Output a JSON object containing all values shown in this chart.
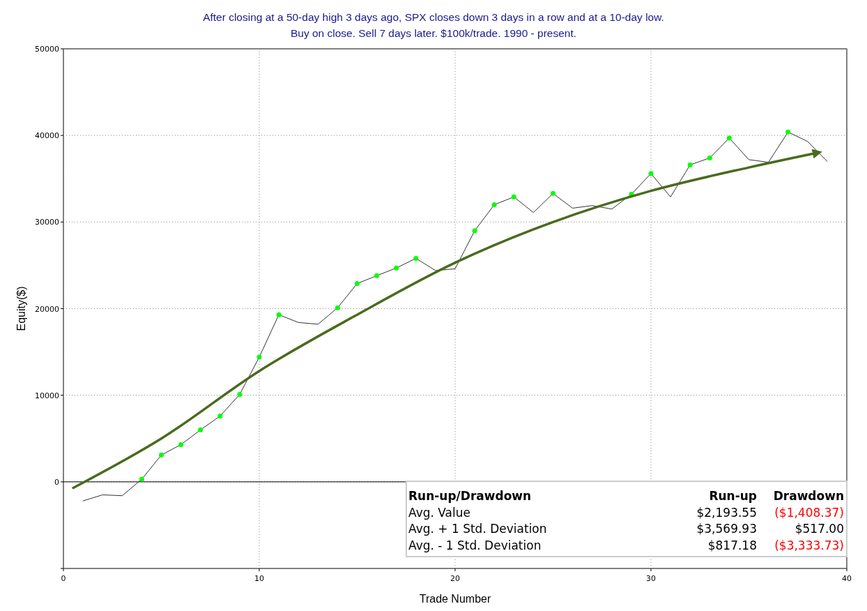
{
  "chart_data": {
    "type": "line",
    "title": "After closing at a 50-day high 3 days ago, SPX closes down 3 days in a row and at a 10-day low.",
    "subtitle": "Buy on close. Sell 7 days later. $100k/trade. 1990 - present.",
    "xlabel": "Trade Number",
    "ylabel": "Equity($)",
    "x": [
      1,
      2,
      3,
      4,
      5,
      6,
      7,
      8,
      9,
      10,
      11,
      12,
      13,
      14,
      15,
      16,
      17,
      18,
      19,
      20,
      21,
      22,
      23,
      24,
      25,
      26,
      27,
      28,
      29,
      30,
      31,
      32,
      33,
      34,
      35,
      36,
      37,
      38,
      39
    ],
    "series": [
      {
        "color": "#333333",
        "values": [
          -2200,
          -1500,
          -1600,
          300,
          3100,
          4300,
          6000,
          7600,
          10100,
          14400,
          19300,
          18400,
          18200,
          20100,
          22900,
          23800,
          24700,
          25800,
          24400,
          24600,
          29000,
          32000,
          32900,
          31100,
          33300,
          31600,
          31900,
          31500,
          33200,
          35600,
          32900,
          36600,
          37400,
          39700,
          37200,
          36900,
          40400,
          39300,
          37000
        ]
      },
      {
        "type": "scatter",
        "color": "#00ff00",
        "marker": "circle",
        "x": [
          4,
          5,
          6,
          7,
          8,
          9,
          10,
          11,
          14,
          15,
          16,
          17,
          18,
          21,
          22,
          23,
          25,
          29,
          30,
          32,
          33,
          34,
          37
        ],
        "values": [
          300,
          3100,
          4300,
          6000,
          7600,
          10100,
          14400,
          19300,
          20100,
          22900,
          23800,
          24700,
          25800,
          29000,
          32000,
          32900,
          33300,
          33200,
          35600,
          36600,
          37400,
          39700,
          40400
        ]
      },
      {
        "color": "#4a6b1e",
        "x": [
          0.5,
          5,
          10,
          15,
          20,
          25,
          30,
          35,
          38.5
        ],
        "values": [
          -700,
          5000,
          12800,
          19300,
          25300,
          30000,
          33600,
          36300,
          38000
        ]
      }
    ],
    "xlim": [
      0,
      40
    ],
    "xticks": [
      0,
      10,
      20,
      30,
      40
    ],
    "ylim": [
      -10000,
      50000
    ],
    "yticks": [
      {
        "value": -10000,
        "label": null
      },
      0,
      10000,
      20000,
      30000,
      40000,
      50000
    ],
    "grid": true,
    "ref_lines": [
      {
        "axis": "y",
        "value": 0,
        "color": "#000000"
      }
    ],
    "annotations": [
      "Run-up/Drawdown",
      "Run-up",
      "Drawdown",
      "Avg. Value",
      "$2,193.55",
      "($1,408.37)",
      "Avg. + 1 Std. Deviation",
      "$3,569.93",
      "$517.00",
      "Avg. - 1 Std. Deviation",
      "$817.18",
      "($3,333.73)"
    ]
  }
}
